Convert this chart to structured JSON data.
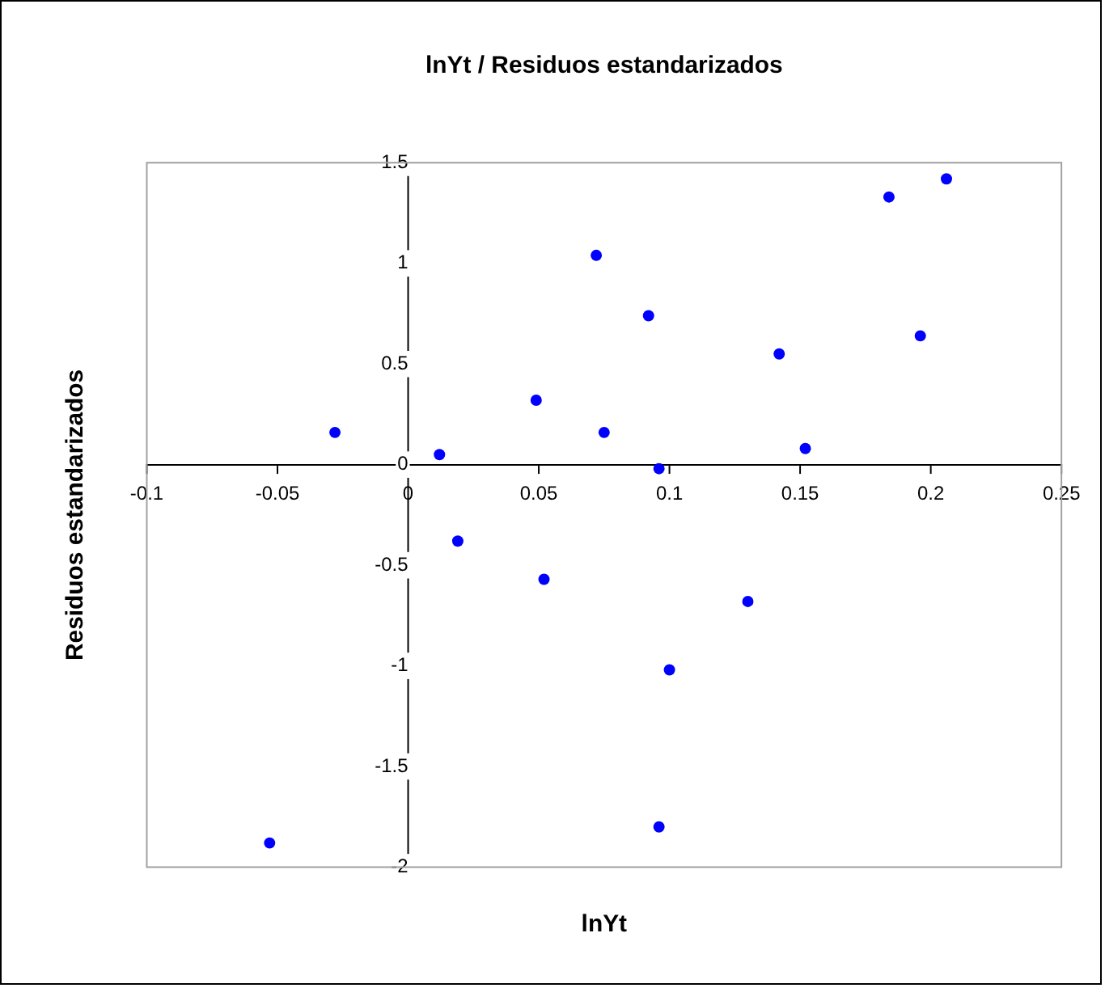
{
  "chart_data": {
    "type": "scatter",
    "title": "lnYt / Residuos estandarizados",
    "xlabel": "lnYt",
    "ylabel": "Residuos estandarizados",
    "x": [
      -0.028,
      -0.053,
      0.012,
      0.019,
      0.049,
      0.052,
      0.072,
      0.075,
      0.092,
      0.096,
      0.1,
      0.096,
      0.13,
      0.142,
      0.152,
      0.184,
      0.196,
      0.206
    ],
    "series": [
      {
        "color": "#0000ff",
        "values": [
          0.16,
          -1.88,
          0.05,
          -0.38,
          0.32,
          -0.57,
          1.04,
          0.16,
          0.74,
          -0.02,
          -1.02,
          -1.8,
          -0.68,
          0.55,
          0.08,
          1.33,
          0.64,
          1.42
        ]
      }
    ],
    "xlim": [
      -0.1,
      0.25
    ],
    "xticks": [
      -0.1,
      -0.05,
      0,
      0.05,
      0.1,
      0.15,
      0.2,
      0.25
    ],
    "ylim": [
      -2,
      1.5
    ],
    "yticks": [
      -2,
      -1.5,
      -1,
      -0.5,
      0,
      0.5,
      1,
      1.5
    ],
    "grid": false,
    "legend": false,
    "marker": "circle"
  }
}
